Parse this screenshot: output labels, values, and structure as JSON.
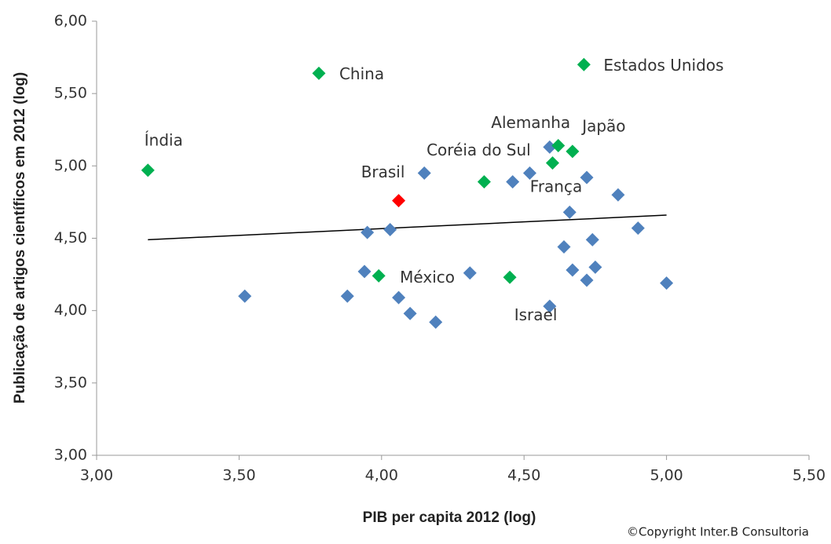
{
  "chart_data": {
    "type": "scatter",
    "x_label": "PIB per capita 2012 (log)",
    "y_label": "Publicação de artigos científicos em 2012 (log)",
    "xlim": [
      3,
      5.5
    ],
    "ylim": [
      3,
      6
    ],
    "xticks": [
      {
        "value": 3,
        "label": "3,00"
      },
      {
        "value": 3.5,
        "label": "3,50"
      },
      {
        "value": 4,
        "label": "4,00"
      },
      {
        "value": 4.5,
        "label": "4,50"
      },
      {
        "value": 5,
        "label": "5,00"
      },
      {
        "value": 5.5,
        "label": "5,50"
      }
    ],
    "yticks": [
      {
        "value": 3,
        "label": "3,00"
      },
      {
        "value": 3.5,
        "label": "3,50"
      },
      {
        "value": 4,
        "label": "4,00"
      },
      {
        "value": 4.5,
        "label": "4,50"
      },
      {
        "value": 5,
        "label": "5,00"
      },
      {
        "value": 5.5,
        "label": "5,50"
      },
      {
        "value": 6,
        "label": "6,00"
      }
    ],
    "series": [
      {
        "color": "#4f81bd",
        "x": [
          3.52,
          3.88,
          3.95,
          3.94,
          4.03,
          4.06,
          4.1,
          4.19,
          4.15,
          4.31,
          4.46,
          4.52,
          4.59,
          4.66,
          4.64,
          4.67,
          4.59,
          4.72,
          4.75,
          4.74,
          4.72,
          4.83,
          4.9,
          5.0
        ],
        "y": [
          4.1,
          4.1,
          4.54,
          4.27,
          4.56,
          4.09,
          3.98,
          3.92,
          4.95,
          4.26,
          4.89,
          4.95,
          5.13,
          4.68,
          4.44,
          4.28,
          4.03,
          4.21,
          4.3,
          4.49,
          4.92,
          4.8,
          4.57,
          4.19
        ],
        "labels": [
          null,
          null,
          null,
          null,
          null,
          null,
          null,
          null,
          null,
          null,
          null,
          null,
          null,
          null,
          null,
          null,
          null,
          null,
          null,
          null,
          "França",
          null,
          null,
          null
        ]
      },
      {
        "color": "#00b050",
        "x": [
          3.18,
          3.78,
          4.71,
          4.62,
          4.67,
          4.6,
          4.36,
          3.99,
          4.45
        ],
        "y": [
          4.97,
          5.64,
          5.7,
          5.14,
          5.1,
          5.02,
          4.89,
          4.24,
          4.23
        ],
        "labels": [
          "Índia",
          "China",
          "Estados Unidos",
          "Alemanha",
          "Japão",
          null,
          "Coréia do Sul",
          "México",
          "Israel"
        ]
      },
      {
        "color": "#ff0000",
        "x": [
          4.06
        ],
        "y": [
          4.76
        ],
        "labels": [
          "Brasil"
        ]
      }
    ],
    "trendline": {
      "x": [
        3.18,
        5.0
      ],
      "y": [
        4.49,
        4.66
      ],
      "color": "#000000"
    },
    "copyright": "©Copyright Inter.B Consultoria"
  }
}
